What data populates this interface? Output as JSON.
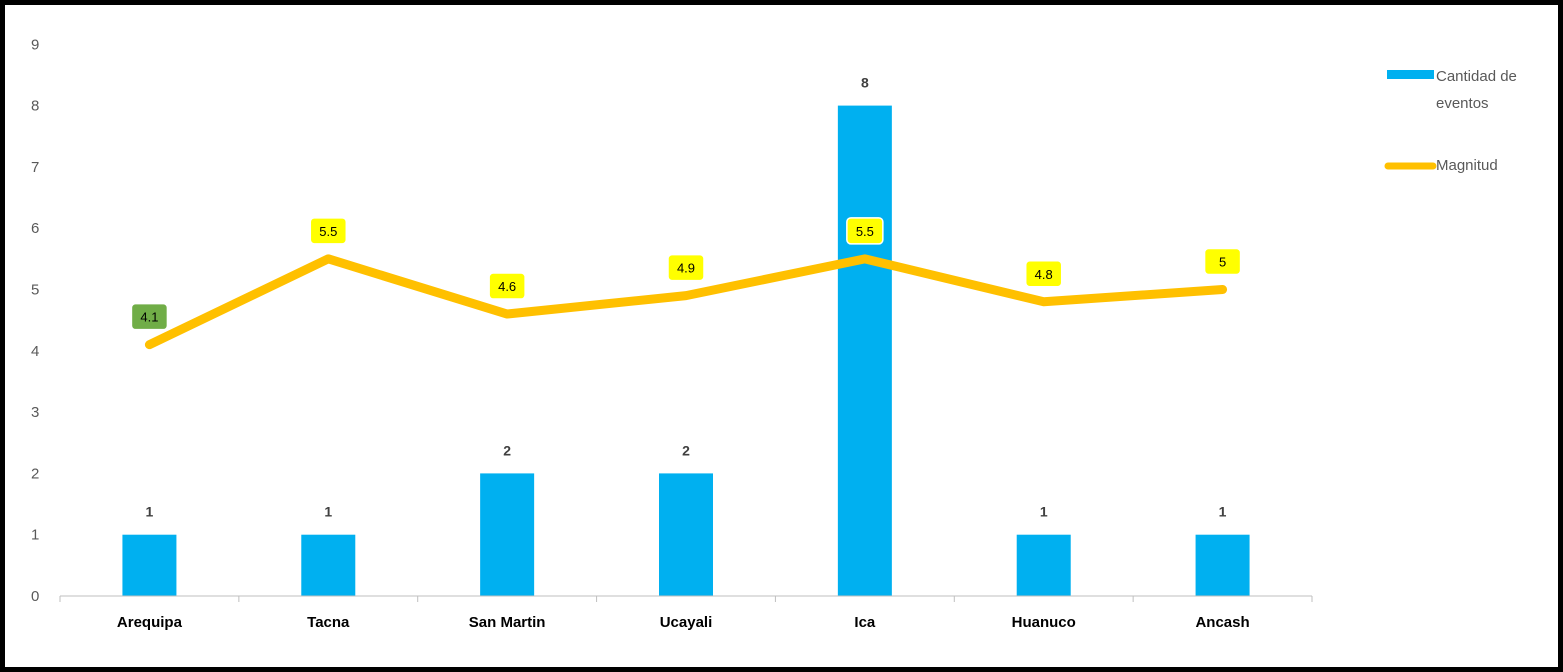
{
  "chart_data": {
    "type": "bar",
    "categories": [
      "Arequipa",
      "Tacna",
      "San Martin",
      "Ucayali",
      "Ica",
      "Huanuco",
      "Ancash"
    ],
    "series": [
      {
        "name": "Cantidad de eventos",
        "type": "bar",
        "color": "#00b0f0",
        "values": [
          1,
          1,
          2,
          2,
          8,
          1,
          1
        ],
        "labels": [
          "1",
          "1",
          "2",
          "2",
          "8",
          "1",
          "1"
        ]
      },
      {
        "name": "Magnitud",
        "type": "line",
        "color": "#ffc000",
        "values": [
          4.1,
          5.5,
          4.6,
          4.9,
          5.5,
          4.8,
          5
        ],
        "labels": [
          "4.1",
          "5.5",
          "4.6",
          "4.9",
          "5.5",
          "4.8",
          "5"
        ],
        "label_colors": [
          "#70ad47",
          "#ffff00",
          "#ffff00",
          "#ffff00",
          "#ffff00",
          "#ffff00",
          "#ffff00"
        ]
      }
    ],
    "y_ticks": [
      "0",
      "1",
      "2",
      "3",
      "4",
      "5",
      "6",
      "7",
      "8",
      "9"
    ],
    "ylim": [
      0,
      9
    ],
    "grid": false,
    "legend": {
      "position": "right",
      "items": [
        {
          "label_lines": [
            "Cantidad de",
            "eventos"
          ],
          "marker": "bar"
        },
        {
          "label_lines": [
            "Magnitud"
          ],
          "marker": "line"
        }
      ]
    }
  }
}
